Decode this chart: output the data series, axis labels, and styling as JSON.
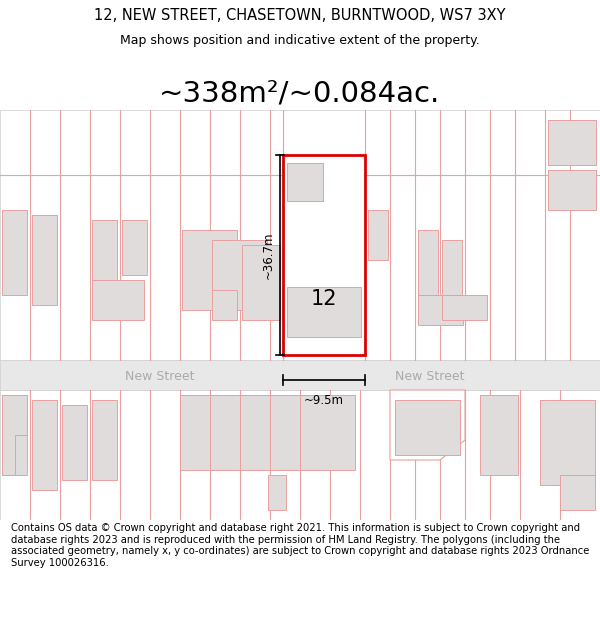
{
  "title_line1": "12, NEW STREET, CHASETOWN, BURNTWOOD, WS7 3XY",
  "title_line2": "Map shows position and indicative extent of the property.",
  "area_text": "~338m²/~0.084ac.",
  "property_number": "12",
  "dim_height": "~36.7m",
  "dim_width": "~9.5m",
  "street_name": "New Street",
  "footer_text": "Contains OS data © Crown copyright and database right 2021. This information is subject to Crown copyright and database rights 2023 and is reproduced with the permission of HM Land Registry. The polygons (including the associated geometry, namely x, y co-ordinates) are subject to Crown copyright and database rights 2023 Ordnance Survey 100026316.",
  "bg_color": "#ffffff",
  "map_bg": "#ffffff",
  "road_color": "#e8e8e8",
  "plot_line_color": "#dd0000",
  "plot_line_light": "#e8a0a0",
  "building_fill": "#e0dcdc",
  "highlight_fill": "#ffffff",
  "dim_line_color": "#000000",
  "road_label_color": "#aaaaaa",
  "title_fontsize": 10.5,
  "subtitle_fontsize": 9,
  "area_fontsize": 21,
  "footer_fontsize": 7.2
}
